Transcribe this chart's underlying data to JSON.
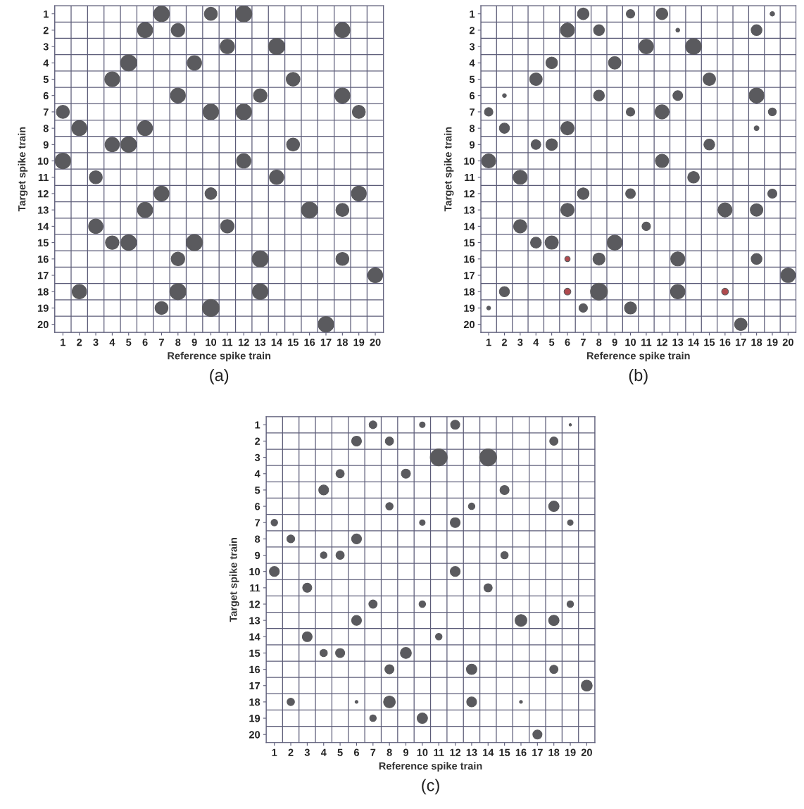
{
  "chart_data": [
    {
      "type": "bubble",
      "xlabel": "Reference spike train",
      "ylabel": "Target spike train",
      "annotations": [
        "(a)"
      ],
      "grid": true,
      "marker": "circle",
      "xlim": [
        0.5,
        20.5
      ],
      "xticks": [
        1,
        2,
        3,
        4,
        5,
        6,
        7,
        8,
        9,
        10,
        11,
        12,
        13,
        14,
        15,
        16,
        17,
        18,
        19,
        20
      ],
      "ylim": [
        20.5,
        0.5
      ],
      "yticks": [
        1,
        2,
        3,
        4,
        5,
        6,
        7,
        8,
        9,
        10,
        11,
        12,
        13,
        14,
        15,
        16,
        17,
        18,
        19,
        20
      ],
      "series": [
        {
          "color": "#5a5a5e",
          "x": [
            7,
            10,
            12,
            6,
            8,
            18,
            11,
            14,
            5,
            9,
            4,
            15,
            8,
            13,
            18,
            1,
            10,
            12,
            19,
            2,
            6,
            4,
            5,
            15,
            1,
            12,
            3,
            14,
            7,
            10,
            19,
            6,
            16,
            18,
            3,
            11,
            4,
            5,
            9,
            8,
            13,
            18,
            20,
            2,
            8,
            13,
            7,
            10,
            17
          ],
          "values": [
            1,
            1,
            1,
            2,
            2,
            2,
            3,
            3,
            4,
            4,
            5,
            5,
            6,
            6,
            6,
            7,
            7,
            7,
            7,
            8,
            8,
            9,
            9,
            9,
            10,
            10,
            11,
            11,
            12,
            12,
            12,
            13,
            13,
            13,
            14,
            14,
            15,
            15,
            15,
            16,
            16,
            16,
            17,
            18,
            18,
            18,
            19,
            19,
            20
          ],
          "sizes": [
            0.85,
            0.59,
            0.91,
            0.8,
            0.64,
            0.8,
            0.72,
            0.91,
            0.91,
            0.72,
            0.77,
            0.66,
            0.77,
            0.64,
            0.8,
            0.59,
            0.85,
            0.85,
            0.59,
            0.8,
            0.77,
            0.72,
            0.85,
            0.59,
            0.85,
            0.72,
            0.59,
            0.72,
            0.77,
            0.48,
            0.77,
            0.8,
            0.91,
            0.59,
            0.72,
            0.64,
            0.64,
            0.85,
            0.91,
            0.64,
            0.91,
            0.59,
            0.77,
            0.72,
            0.91,
            0.85,
            0.59,
            1,
            0.85
          ]
        }
      ]
    },
    {
      "type": "bubble",
      "xlabel": "Reference spike train",
      "ylabel": "Target spike train",
      "annotations": [
        "(b)"
      ],
      "grid": true,
      "marker": "circle",
      "xlim": [
        0.5,
        20.5
      ],
      "xticks": [
        1,
        2,
        3,
        4,
        5,
        6,
        7,
        8,
        9,
        10,
        11,
        12,
        13,
        14,
        15,
        16,
        17,
        18,
        19,
        20
      ],
      "ylim": [
        20.5,
        0.5
      ],
      "yticks": [
        1,
        2,
        3,
        4,
        5,
        6,
        7,
        8,
        9,
        10,
        11,
        12,
        13,
        14,
        15,
        16,
        17,
        18,
        19,
        20
      ],
      "series": [
        {
          "color": "#5a5a5e",
          "x": [
            7,
            10,
            12,
            19,
            6,
            8,
            13,
            18,
            11,
            14,
            5,
            9,
            4,
            15,
            2,
            8,
            13,
            18,
            1,
            10,
            12,
            19,
            2,
            6,
            18,
            4,
            5,
            15,
            1,
            12,
            3,
            14,
            7,
            10,
            19,
            6,
            16,
            18,
            3,
            11,
            4,
            5,
            9,
            6,
            8,
            13,
            18,
            20,
            2,
            6,
            8,
            13,
            16,
            1,
            7,
            10,
            17
          ],
          "values": [
            1,
            1,
            1,
            1,
            2,
            2,
            2,
            2,
            3,
            3,
            4,
            4,
            5,
            5,
            6,
            6,
            6,
            6,
            7,
            7,
            7,
            7,
            8,
            8,
            8,
            9,
            9,
            9,
            10,
            10,
            11,
            11,
            12,
            12,
            12,
            13,
            13,
            13,
            14,
            14,
            15,
            15,
            15,
            16,
            16,
            16,
            16,
            17,
            18,
            18,
            18,
            18,
            18,
            19,
            19,
            19,
            20
          ],
          "sizes": [
            0.47,
            0.25,
            0.47,
            0.07,
            0.69,
            0.41,
            0.05,
            0.41,
            0.73,
            0.86,
            0.47,
            0.55,
            0.55,
            0.55,
            0.05,
            0.41,
            0.33,
            0.78,
            0.25,
            0.25,
            0.69,
            0.22,
            0.36,
            0.62,
            0.08,
            0.33,
            0.47,
            0.41,
            0.69,
            0.62,
            0.69,
            0.47,
            0.47,
            0.33,
            0.29,
            0.62,
            0.69,
            0.55,
            0.62,
            0.25,
            0.41,
            0.62,
            0.78,
            0.1,
            0.51,
            0.69,
            0.41,
            0.73,
            0.36,
            0.16,
            1,
            0.73,
            0.16,
            0.05,
            0.25,
            0.51,
            0.55
          ],
          "colors": [
            "#5a5a5e",
            "#5a5a5e",
            "#5a5a5e",
            "#5a5a5e",
            "#5a5a5e",
            "#5a5a5e",
            "#5a5a5e",
            "#5a5a5e",
            "#5a5a5e",
            "#5a5a5e",
            "#5a5a5e",
            "#5a5a5e",
            "#5a5a5e",
            "#5a5a5e",
            "#5a5a5e",
            "#5a5a5e",
            "#5a5a5e",
            "#5a5a5e",
            "#5a5a5e",
            "#5a5a5e",
            "#5a5a5e",
            "#5a5a5e",
            "#5a5a5e",
            "#5a5a5e",
            "#5a5a5e",
            "#5a5a5e",
            "#5a5a5e",
            "#5a5a5e",
            "#5a5a5e",
            "#5a5a5e",
            "#5a5a5e",
            "#5a5a5e",
            "#5a5a5e",
            "#5a5a5e",
            "#5a5a5e",
            "#5a5a5e",
            "#5a5a5e",
            "#5a5a5e",
            "#5a5a5e",
            "#5a5a5e",
            "#5a5a5e",
            "#5a5a5e",
            "#5a5a5e",
            "#b04a4e",
            "#5a5a5e",
            "#5a5a5e",
            "#5a5a5e",
            "#5a5a5e",
            "#5a5a5e",
            "#b04a4e",
            "#5a5a5e",
            "#5a5a5e",
            "#b04a4e",
            "#5a5a5e",
            "#5a5a5e",
            "#5a5a5e",
            "#5a5a5e"
          ]
        }
      ]
    },
    {
      "type": "bubble",
      "xlabel": "Reference spike train",
      "ylabel": "Target spike train",
      "annotations": [
        "(c)"
      ],
      "grid": true,
      "marker": "circle",
      "xlim": [
        0.5,
        20.5
      ],
      "xticks": [
        1,
        2,
        3,
        4,
        5,
        6,
        7,
        8,
        9,
        10,
        11,
        12,
        13,
        14,
        15,
        16,
        17,
        18,
        19,
        20
      ],
      "ylim": [
        20.5,
        0.5
      ],
      "yticks": [
        1,
        2,
        3,
        4,
        5,
        6,
        7,
        8,
        9,
        10,
        11,
        12,
        13,
        14,
        15,
        16,
        17,
        18,
        19,
        20
      ],
      "series": [
        {
          "color": "#5a5a5e",
          "x": [
            7,
            10,
            12,
            19,
            6,
            8,
            18,
            11,
            14,
            5,
            9,
            4,
            15,
            8,
            13,
            18,
            1,
            10,
            12,
            19,
            2,
            6,
            4,
            5,
            15,
            1,
            12,
            3,
            14,
            7,
            10,
            19,
            6,
            16,
            18,
            3,
            11,
            4,
            5,
            9,
            8,
            13,
            18,
            20,
            2,
            6,
            8,
            13,
            16,
            7,
            10,
            17
          ],
          "values": [
            1,
            1,
            1,
            1,
            2,
            2,
            2,
            3,
            3,
            4,
            4,
            5,
            5,
            6,
            6,
            6,
            7,
            7,
            7,
            7,
            8,
            8,
            9,
            9,
            9,
            10,
            10,
            11,
            11,
            12,
            12,
            12,
            13,
            13,
            13,
            14,
            14,
            15,
            15,
            15,
            16,
            16,
            16,
            17,
            18,
            18,
            18,
            18,
            18,
            19,
            19,
            20
          ],
          "sizes": [
            0.21,
            0.11,
            0.29,
            0.02,
            0.34,
            0.24,
            0.24,
            1,
            1,
            0.24,
            0.29,
            0.34,
            0.29,
            0.19,
            0.15,
            0.38,
            0.15,
            0.11,
            0.34,
            0.11,
            0.21,
            0.34,
            0.15,
            0.24,
            0.19,
            0.34,
            0.34,
            0.29,
            0.24,
            0.24,
            0.15,
            0.15,
            0.34,
            0.48,
            0.38,
            0.34,
            0.15,
            0.19,
            0.29,
            0.42,
            0.29,
            0.38,
            0.24,
            0.42,
            0.19,
            0.03,
            0.48,
            0.34,
            0.03,
            0.15,
            0.38,
            0.29
          ]
        }
      ]
    }
  ]
}
